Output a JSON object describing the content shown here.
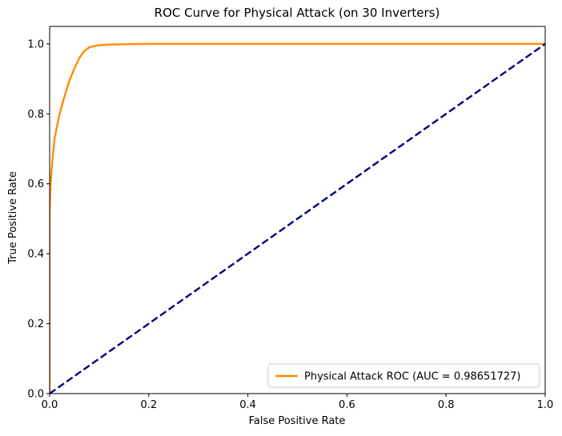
{
  "chart_data": {
    "type": "line",
    "title": "ROC Curve for Physical Attack (on 30 Inverters)",
    "xlabel": "False Positive Rate",
    "ylabel": "True Positive Rate",
    "xlim": [
      0.0,
      1.0
    ],
    "ylim": [
      0.0,
      1.05
    ],
    "xticks": [
      0.0,
      0.2,
      0.4,
      0.6,
      0.8,
      1.0
    ],
    "xtick_labels": [
      "0.0",
      "0.2",
      "0.4",
      "0.6",
      "0.8",
      "1.0"
    ],
    "yticks": [
      0.0,
      0.2,
      0.4,
      0.6,
      0.8,
      1.0
    ],
    "ytick_labels": [
      "0.0",
      "0.2",
      "0.4",
      "0.6",
      "0.8",
      "1.0"
    ],
    "grid": false,
    "legend_position": "lower-right",
    "series": [
      {
        "name": "Physical Attack ROC (AUC = 0.98651727)",
        "color": "#ff8c00",
        "style": "solid",
        "x": [
          0.0,
          0.0,
          0.002,
          0.005,
          0.01,
          0.02,
          0.03,
          0.04,
          0.05,
          0.06,
          0.07,
          0.08,
          0.09,
          0.1,
          0.12,
          0.15,
          0.2,
          0.3,
          0.5,
          0.8,
          1.0
        ],
        "y": [
          0.0,
          0.52,
          0.6,
          0.66,
          0.73,
          0.8,
          0.85,
          0.895,
          0.93,
          0.96,
          0.98,
          0.99,
          0.994,
          0.996,
          0.998,
          0.999,
          1.0,
          1.0,
          1.0,
          1.0,
          1.0
        ]
      },
      {
        "name": "",
        "color": "#000080",
        "style": "dashed",
        "x": [
          0.0,
          1.0
        ],
        "y": [
          0.0,
          1.0
        ]
      }
    ]
  }
}
